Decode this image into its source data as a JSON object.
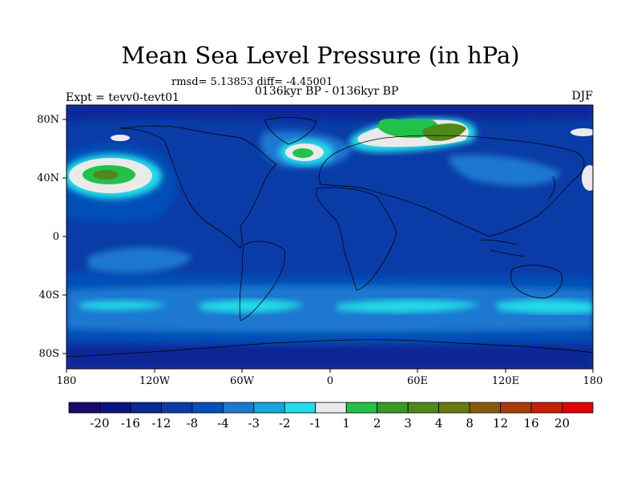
{
  "title": "Mean Sea Level Pressure (in hPa)",
  "subtitle_stats": "rmsd= 5.13853 diff= -4.45001",
  "subtitle_period": "0136kyr BP - 0136kyr BP",
  "left_label": "Expt = tevv0-tevt01",
  "right_label": "DJF",
  "axes": {
    "lat_ticks": [
      "80N",
      "40N",
      "0",
      "40S",
      "80S"
    ],
    "lon_ticks": [
      "180",
      "120W",
      "60W",
      "0",
      "60E",
      "120E",
      "180"
    ]
  },
  "colorbar": {
    "labels": [
      "-20",
      "-16",
      "-12",
      "-8",
      "-4",
      "-3",
      "-2",
      "-1",
      "1",
      "2",
      "3",
      "4",
      "8",
      "12",
      "16",
      "20"
    ],
    "colors": [
      "#1a0a6b",
      "#0a1480",
      "#0a2896",
      "#0a3ca8",
      "#0050b8",
      "#1c78d0",
      "#12a8dc",
      "#22dce8",
      "#eaeaea",
      "#22c24a",
      "#3a9a28",
      "#4e8a1a",
      "#6a7a12",
      "#8a5a0c",
      "#a83c08",
      "#c82004",
      "#e00000"
    ]
  },
  "field_colors": {
    "base": "#0a3ca8",
    "mid": "#0050b8",
    "light": "#1c78d0",
    "cyan": "#22dce8",
    "white": "#eaeaea",
    "green": "#22c24a",
    "darkgreen": "#4e8a1a",
    "deep": "#0a2896",
    "coast": "#000000"
  }
}
